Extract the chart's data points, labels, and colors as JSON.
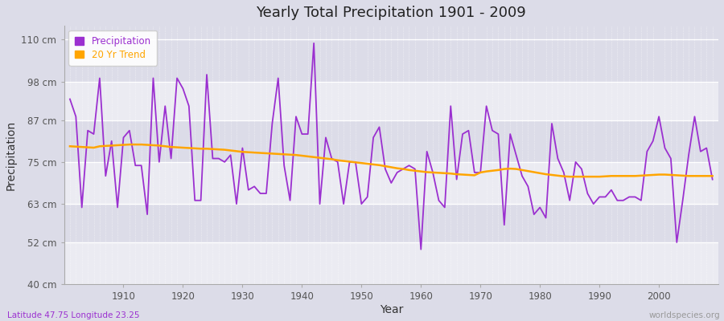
{
  "title": "Yearly Total Precipitation 1901 - 2009",
  "xlabel": "Year",
  "ylabel": "Precipitation",
  "subtitle": "Latitude 47.75 Longitude 23.25",
  "watermark": "worldspecies.org",
  "precip_color": "#9B30D0",
  "trend_color": "#FFA500",
  "bg_color": "#DCDCE8",
  "plot_bg_color": "#DCDCE8",
  "ylim": [
    40,
    114
  ],
  "yticks": [
    40,
    52,
    63,
    75,
    87,
    98,
    110
  ],
  "ytick_labels": [
    "40 cm",
    "52 cm",
    "63 cm",
    "75 cm",
    "87 cm",
    "98 cm",
    "110 cm"
  ],
  "years": [
    1901,
    1902,
    1903,
    1904,
    1905,
    1906,
    1907,
    1908,
    1909,
    1910,
    1911,
    1912,
    1913,
    1914,
    1915,
    1916,
    1917,
    1918,
    1919,
    1920,
    1921,
    1922,
    1923,
    1924,
    1925,
    1926,
    1927,
    1928,
    1929,
    1930,
    1931,
    1932,
    1933,
    1934,
    1935,
    1936,
    1937,
    1938,
    1939,
    1940,
    1941,
    1942,
    1943,
    1944,
    1945,
    1946,
    1947,
    1948,
    1949,
    1950,
    1951,
    1952,
    1953,
    1954,
    1955,
    1956,
    1957,
    1958,
    1959,
    1960,
    1961,
    1962,
    1963,
    1964,
    1965,
    1966,
    1967,
    1968,
    1969,
    1970,
    1971,
    1972,
    1973,
    1974,
    1975,
    1976,
    1977,
    1978,
    1979,
    1980,
    1981,
    1982,
    1983,
    1984,
    1985,
    1986,
    1987,
    1988,
    1989,
    1990,
    1991,
    1992,
    1993,
    1994,
    1995,
    1996,
    1997,
    1998,
    1999,
    2000,
    2001,
    2002,
    2003,
    2004,
    2005,
    2006,
    2007,
    2008,
    2009
  ],
  "precip": [
    93,
    88,
    62,
    84,
    83,
    99,
    71,
    81,
    62,
    82,
    84,
    74,
    74,
    60,
    99,
    75,
    91,
    76,
    99,
    96,
    91,
    64,
    64,
    100,
    76,
    76,
    75,
    77,
    63,
    79,
    67,
    68,
    66,
    66,
    86,
    99,
    74,
    64,
    88,
    83,
    83,
    109,
    63,
    82,
    76,
    75,
    63,
    75,
    75,
    63,
    65,
    82,
    85,
    73,
    69,
    72,
    73,
    74,
    73,
    50,
    78,
    72,
    64,
    62,
    91,
    70,
    83,
    84,
    72,
    72,
    91,
    84,
    83,
    57,
    83,
    77,
    71,
    68,
    60,
    62,
    59,
    86,
    76,
    72,
    64,
    75,
    73,
    66,
    63,
    65,
    65,
    67,
    64,
    64,
    65,
    65,
    64,
    78,
    81,
    88,
    79,
    76,
    52,
    64,
    77,
    88,
    78,
    79,
    70
  ],
  "trend": [
    79.5,
    79.4,
    79.3,
    79.2,
    79.1,
    79.5,
    79.6,
    79.7,
    79.8,
    79.9,
    80.0,
    80.0,
    80.0,
    79.9,
    79.8,
    79.7,
    79.5,
    79.3,
    79.2,
    79.1,
    79.0,
    78.9,
    78.8,
    78.8,
    78.7,
    78.6,
    78.5,
    78.3,
    78.1,
    77.9,
    77.8,
    77.7,
    77.6,
    77.5,
    77.4,
    77.3,
    77.2,
    77.1,
    77.0,
    76.8,
    76.6,
    76.4,
    76.2,
    76.0,
    75.8,
    75.5,
    75.3,
    75.1,
    74.9,
    74.7,
    74.5,
    74.3,
    74.1,
    73.8,
    73.5,
    73.2,
    73.0,
    72.7,
    72.5,
    72.3,
    72.1,
    72.0,
    71.9,
    71.8,
    71.7,
    71.5,
    71.4,
    71.3,
    71.2,
    72.0,
    72.3,
    72.5,
    72.7,
    73.0,
    73.1,
    73.0,
    72.7,
    72.4,
    72.1,
    71.8,
    71.5,
    71.3,
    71.1,
    70.9,
    70.8,
    70.8,
    70.8,
    70.8,
    70.8,
    70.8,
    70.9,
    71.0,
    71.0,
    71.0,
    71.0,
    71.0,
    71.1,
    71.2,
    71.3,
    71.4,
    71.4,
    71.3,
    71.2,
    71.1,
    71.0,
    71.0,
    71.0,
    71.0,
    71.0
  ]
}
